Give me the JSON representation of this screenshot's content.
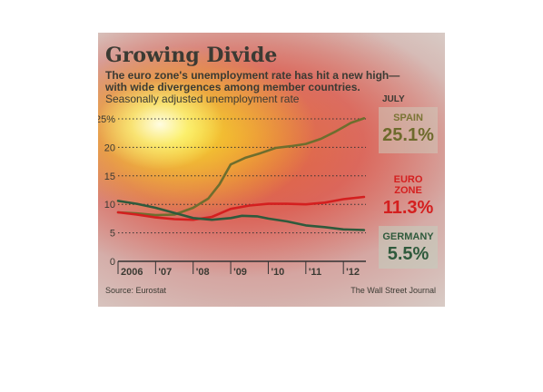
{
  "chart_data": {
    "type": "line",
    "title": "Growing Divide",
    "subtitle_lines": [
      "The euro zone's unemployment rate has hit a new high—",
      "with wide divergences among member countries."
    ],
    "note": "Seasonally adjusted unemployment rate",
    "end_label_header": "JULY",
    "xlim": [
      2006,
      2012.6
    ],
    "ylim": [
      0,
      25
    ],
    "y_ticks": [
      0,
      5,
      10,
      15,
      20,
      25
    ],
    "y_tick_labels": [
      "0",
      "5",
      "10",
      "15",
      "20",
      "25%"
    ],
    "x_tick_labels": [
      {
        "x": 2006,
        "label": "2006"
      },
      {
        "x": 2007,
        "label": "'07"
      },
      {
        "x": 2008,
        "label": "'08"
      },
      {
        "x": 2009,
        "label": "'09"
      },
      {
        "x": 2010,
        "label": "'10"
      },
      {
        "x": 2011,
        "label": "'11"
      },
      {
        "x": 2012,
        "label": "'12"
      }
    ],
    "grid": "horizontal dotted",
    "series": [
      {
        "name": "SPAIN",
        "end_value_label": "25.1%",
        "color": "#6e6e2e",
        "points": [
          [
            2006.0,
            8.6
          ],
          [
            2006.5,
            8.4
          ],
          [
            2007.0,
            8.1
          ],
          [
            2007.5,
            8.2
          ],
          [
            2008.0,
            9.4
          ],
          [
            2008.4,
            11.0
          ],
          [
            2008.7,
            13.5
          ],
          [
            2009.0,
            17.0
          ],
          [
            2009.4,
            18.2
          ],
          [
            2009.8,
            19.0
          ],
          [
            2010.2,
            19.9
          ],
          [
            2010.6,
            20.2
          ],
          [
            2011.0,
            20.6
          ],
          [
            2011.4,
            21.5
          ],
          [
            2011.8,
            22.8
          ],
          [
            2012.2,
            24.3
          ],
          [
            2012.55,
            25.1
          ]
        ]
      },
      {
        "name": "EURO ZONE",
        "end_value_label": "11.3%",
        "color": "#d41f1f",
        "points": [
          [
            2006.0,
            8.6
          ],
          [
            2006.5,
            8.2
          ],
          [
            2007.0,
            7.7
          ],
          [
            2007.5,
            7.4
          ],
          [
            2008.0,
            7.3
          ],
          [
            2008.5,
            7.8
          ],
          [
            2009.0,
            9.2
          ],
          [
            2009.5,
            9.8
          ],
          [
            2010.0,
            10.1
          ],
          [
            2010.5,
            10.1
          ],
          [
            2011.0,
            10.0
          ],
          [
            2011.5,
            10.3
          ],
          [
            2012.0,
            10.9
          ],
          [
            2012.55,
            11.3
          ]
        ]
      },
      {
        "name": "GERMANY",
        "end_value_label": "5.5%",
        "color": "#2f5a3c",
        "points": [
          [
            2006.0,
            10.6
          ],
          [
            2006.5,
            10.1
          ],
          [
            2007.0,
            9.4
          ],
          [
            2007.5,
            8.5
          ],
          [
            2008.0,
            7.6
          ],
          [
            2008.5,
            7.3
          ],
          [
            2009.0,
            7.6
          ],
          [
            2009.3,
            8.0
          ],
          [
            2009.7,
            7.9
          ],
          [
            2010.0,
            7.5
          ],
          [
            2010.5,
            7.0
          ],
          [
            2011.0,
            6.3
          ],
          [
            2011.5,
            6.0
          ],
          [
            2012.0,
            5.6
          ],
          [
            2012.55,
            5.5
          ]
        ]
      }
    ],
    "source": "Source: Eurostat",
    "credit": "The Wall Street Journal"
  }
}
